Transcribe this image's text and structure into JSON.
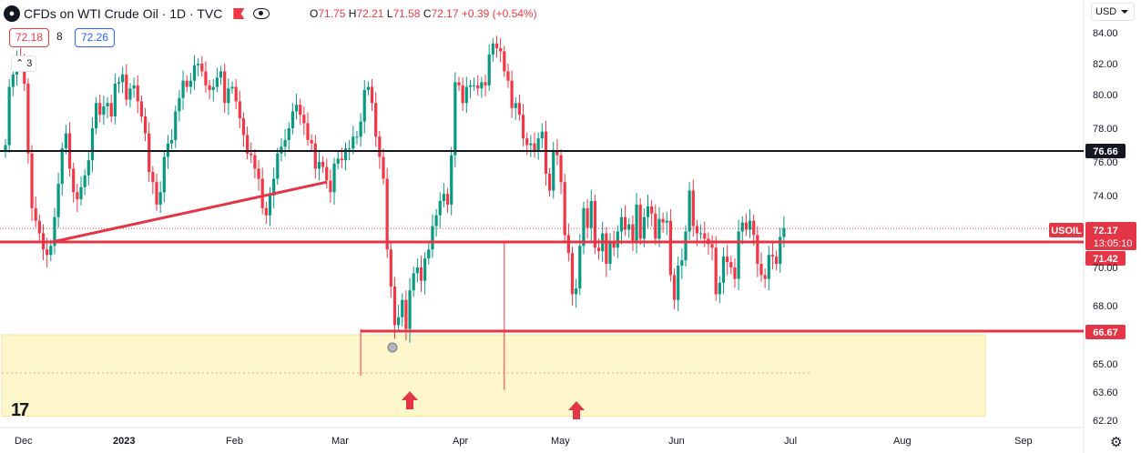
{
  "header": {
    "logo_icon": "oil-drop-icon",
    "title": "CFDs on WTI Crude Oil · 1D · TVC",
    "open_label": "O",
    "open": "71.75",
    "high_label": "H",
    "high": "72.21",
    "low_label": "L",
    "low": "71.58",
    "close_label": "C",
    "close": "72.17",
    "change": "+0.39 (+0.54%)"
  },
  "trade": {
    "sell": "72.18",
    "spread": "8",
    "buy": "72.26",
    "collapse_count": "3"
  },
  "currency": "USD",
  "colors": {
    "up": "#089981",
    "down": "#f23645",
    "level": "#e33546",
    "resistance": "#131722",
    "zone_fill": "#fff6c4",
    "zone_border": "#f2e08a"
  },
  "chart_data": {
    "type": "candlestick",
    "symbol": "USOIL",
    "xlabels": [
      "Dec",
      "2023",
      "Feb",
      "Mar",
      "Apr",
      "May",
      "Jun",
      "Jul",
      "Aug",
      "Sep"
    ],
    "yticks": [
      "84.00",
      "82.00",
      "80.00",
      "78.00",
      "76.00",
      "74.00",
      "70.00",
      "68.00",
      "65.00",
      "63.60",
      "62.20"
    ],
    "ylim": [
      62.0,
      84.5
    ],
    "closes": [
      77.0,
      80.5,
      81.3,
      82.5,
      82.0,
      80.7,
      76.5,
      73.3,
      72.6,
      71.9,
      71.0,
      70.7,
      71.2,
      72.8,
      74.7,
      76.8,
      77.7,
      75.6,
      74.2,
      73.8,
      74.5,
      75.2,
      76.1,
      78.0,
      79.5,
      78.8,
      79.3,
      79.5,
      78.7,
      80.7,
      80.8,
      81.3,
      79.7,
      80.4,
      80.6,
      79.6,
      78.7,
      77.7,
      75.4,
      74.8,
      73.5,
      74.2,
      76.3,
      77.1,
      77.3,
      79.0,
      79.8,
      80.9,
      80.5,
      80.9,
      81.9,
      82.0,
      81.5,
      80.6,
      80.3,
      80.5,
      81.1,
      81.5,
      79.5,
      80.4,
      80.5,
      79.6,
      78.6,
      77.6,
      76.5,
      76.4,
      75.6,
      75.0,
      73.3,
      72.9,
      74.0,
      75.0,
      76.5,
      76.9,
      77.3,
      78.0,
      79.0,
      79.4,
      78.8,
      78.3,
      77.3,
      77.1,
      75.6,
      76.0,
      75.7,
      74.9,
      74.2,
      75.9,
      76.2,
      76.1,
      76.8,
      76.8,
      77.5,
      77.5,
      78.4,
      80.3,
      80.5,
      79.5,
      77.5,
      76.3,
      75.0,
      71.0,
      69.0,
      67.0,
      67.4,
      68.3,
      66.8,
      68.8,
      69.7,
      70.0,
      69.3,
      70.5,
      71.0,
      72.3,
      72.9,
      73.7,
      74.1,
      73.5,
      76.4,
      80.8,
      80.6,
      79.5,
      80.5,
      80.6,
      80.6,
      80.4,
      80.8,
      80.6,
      82.6,
      83.3,
      83.0,
      82.8,
      81.5,
      80.9,
      79.2,
      79.5,
      78.8,
      77.4,
      77.0,
      77.1,
      76.6,
      77.4,
      77.8,
      75.3,
      74.3,
      76.7,
      76.4,
      74.8,
      71.8,
      70.8,
      68.6,
      68.9,
      71.2,
      73.3,
      72.2,
      73.7,
      71.1,
      70.9,
      71.9,
      70.2,
      71.4,
      71.1,
      72.0,
      72.8,
      72.1,
      72.4,
      71.5,
      73.5,
      71.6,
      72.8,
      73.4,
      73.0,
      71.6,
      72.7,
      72.5,
      72.6,
      69.6,
      68.3,
      70.1,
      70.4,
      72.0,
      74.3,
      72.3,
      71.9,
      71.9,
      71.6,
      71.3,
      71.1,
      68.6,
      69.2,
      70.6,
      70.3,
      70.0,
      69.4,
      72.0,
      72.5,
      72.1,
      72.6,
      71.8,
      70.2,
      69.6,
      69.4,
      70.7,
      70.6,
      70.2,
      71.7,
      72.2
    ],
    "levels": [
      {
        "value": 76.66,
        "label": "76.66",
        "kind": "resistance"
      },
      {
        "value": 71.42,
        "label": "71.42",
        "kind": "support"
      },
      {
        "value": 66.67,
        "label": "66.67",
        "kind": "support"
      }
    ],
    "last": {
      "symbol": "USOIL",
      "price": "72.17",
      "countdown": "13:05:10"
    },
    "zone": {
      "top": 66.5,
      "bottom": 62.4
    },
    "trendline": {
      "from": [
        12,
        71.4
      ],
      "to": [
        85,
        74.8
      ]
    },
    "markers": [
      {
        "index": 94,
        "icon": "up-arrow-icon"
      },
      {
        "index": 132,
        "icon": "up-arrow-icon"
      }
    ]
  }
}
